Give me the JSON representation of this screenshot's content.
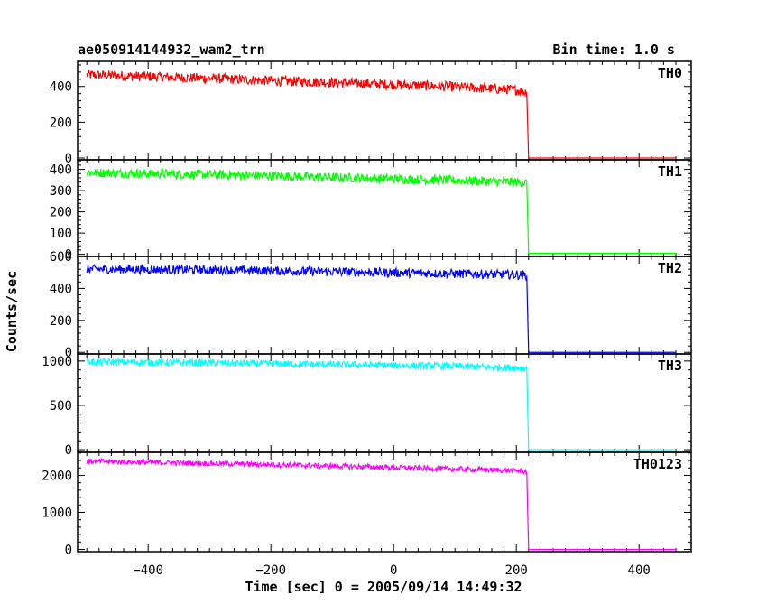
{
  "chart_data": {
    "type": "line",
    "title": "ae050914144932_wam2_trn",
    "subtitle": "Bin time: 1.0 s",
    "xlabel": "Time [sec] 0 = 2005/09/14 14:49:32",
    "ylabel": "Counts/sec",
    "xlim": [
      -515,
      485
    ],
    "x_ticks": [
      -400,
      -200,
      0,
      200,
      400
    ],
    "panels": [
      {
        "name": "TH0",
        "color": "#ff0000",
        "ylim": [
          -10,
          540
        ],
        "y_ticks": [
          0,
          200,
          400
        ],
        "segments": [
          {
            "x": [
              -500,
              -400,
              -300,
              -200,
              -100,
              0,
              100,
              200,
              217
            ],
            "y": [
              465,
              455,
              445,
              432,
              422,
              410,
              398,
              380,
              368
            ]
          },
          {
            "x": [
              217,
              220,
              460
            ],
            "y": [
              368,
              0,
              0
            ]
          }
        ],
        "noise": 28
      },
      {
        "name": "TH1",
        "color": "#00ff00",
        "ylim": [
          -10,
          445
        ],
        "y_ticks": [
          0,
          100,
          200,
          300,
          400
        ],
        "segments": [
          {
            "x": [
              -500,
              -400,
              -300,
              -200,
              -100,
              0,
              100,
              200,
              217
            ],
            "y": [
              385,
              380,
              375,
              370,
              362,
              355,
              348,
              340,
              336
            ]
          },
          {
            "x": [
              217,
              220,
              460
            ],
            "y": [
              336,
              5,
              5
            ]
          }
        ],
        "noise": 22
      },
      {
        "name": "TH2",
        "color": "#0000ff",
        "ylim": [
          -10,
          600
        ],
        "y_ticks": [
          0,
          200,
          400,
          600
        ],
        "segments": [
          {
            "x": [
              -500,
              -400,
              -300,
              -200,
              -100,
              0,
              100,
              200,
              217
            ],
            "y": [
              520,
              518,
              515,
              510,
              505,
              498,
              492,
              485,
              480
            ]
          },
          {
            "x": [
              217,
              220,
              460
            ],
            "y": [
              480,
              0,
              0
            ]
          }
        ],
        "noise": 28
      },
      {
        "name": "TH3",
        "color": "#00ffff",
        "ylim": [
          -30,
          1080
        ],
        "y_ticks": [
          0,
          500,
          1000
        ],
        "segments": [
          {
            "x": [
              -500,
              -400,
              -300,
              -200,
              -100,
              0,
              100,
              200,
              217
            ],
            "y": [
              990,
              985,
              978,
              970,
              960,
              950,
              940,
              925,
              915
            ]
          },
          {
            "x": [
              217,
              220,
              460
            ],
            "y": [
              915,
              0,
              0
            ]
          }
        ],
        "noise": 40
      },
      {
        "name": "TH0123",
        "color": "#ff00ff",
        "ylim": [
          -60,
          2620
        ],
        "y_ticks": [
          0,
          1000,
          2000
        ],
        "segments": [
          {
            "x": [
              -500,
              -400,
              -300,
              -200,
              -100,
              0,
              100,
              200,
              217
            ],
            "y": [
              2380,
              2350,
              2320,
              2290,
              2250,
              2210,
              2170,
              2130,
              2100
            ]
          },
          {
            "x": [
              217,
              220,
              460
            ],
            "y": [
              2100,
              0,
              0
            ]
          }
        ],
        "noise": 70
      }
    ]
  }
}
